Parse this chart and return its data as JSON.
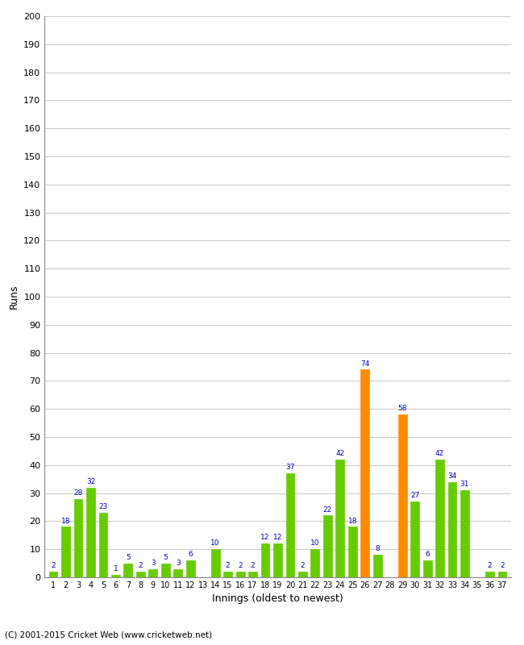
{
  "innings": [
    1,
    2,
    3,
    4,
    5,
    6,
    7,
    8,
    9,
    10,
    11,
    12,
    13,
    14,
    15,
    16,
    17,
    18,
    19,
    20,
    21,
    22,
    23,
    24,
    25,
    26,
    27,
    28,
    29,
    30,
    31,
    32,
    33,
    34,
    35,
    36,
    37
  ],
  "values": [
    2,
    18,
    28,
    32,
    23,
    1,
    5,
    2,
    3,
    5,
    3,
    6,
    0,
    10,
    2,
    2,
    2,
    12,
    12,
    37,
    2,
    10,
    22,
    42,
    18,
    74,
    8,
    0,
    58,
    27,
    6,
    42,
    34,
    31,
    0,
    2,
    2
  ],
  "bar_colors": [
    "#66cc00",
    "#66cc00",
    "#66cc00",
    "#66cc00",
    "#66cc00",
    "#66cc00",
    "#66cc00",
    "#66cc00",
    "#66cc00",
    "#66cc00",
    "#66cc00",
    "#66cc00",
    "#66cc00",
    "#66cc00",
    "#66cc00",
    "#66cc00",
    "#66cc00",
    "#66cc00",
    "#66cc00",
    "#66cc00",
    "#66cc00",
    "#66cc00",
    "#66cc00",
    "#66cc00",
    "#66cc00",
    "#ff8c00",
    "#66cc00",
    "#66cc00",
    "#ff8c00",
    "#66cc00",
    "#66cc00",
    "#66cc00",
    "#66cc00",
    "#66cc00",
    "#66cc00",
    "#66cc00",
    "#66cc00"
  ],
  "xlabel": "Innings (oldest to newest)",
  "ylabel": "Runs",
  "ylim": [
    0,
    200
  ],
  "yticks": [
    0,
    10,
    20,
    30,
    40,
    50,
    60,
    70,
    80,
    90,
    100,
    110,
    120,
    130,
    140,
    150,
    160,
    170,
    180,
    190,
    200
  ],
  "label_color": "#0000cc",
  "background_color": "#ffffff",
  "grid_color": "#cccccc",
  "footer": "(C) 2001-2015 Cricket Web (www.cricketweb.net)"
}
